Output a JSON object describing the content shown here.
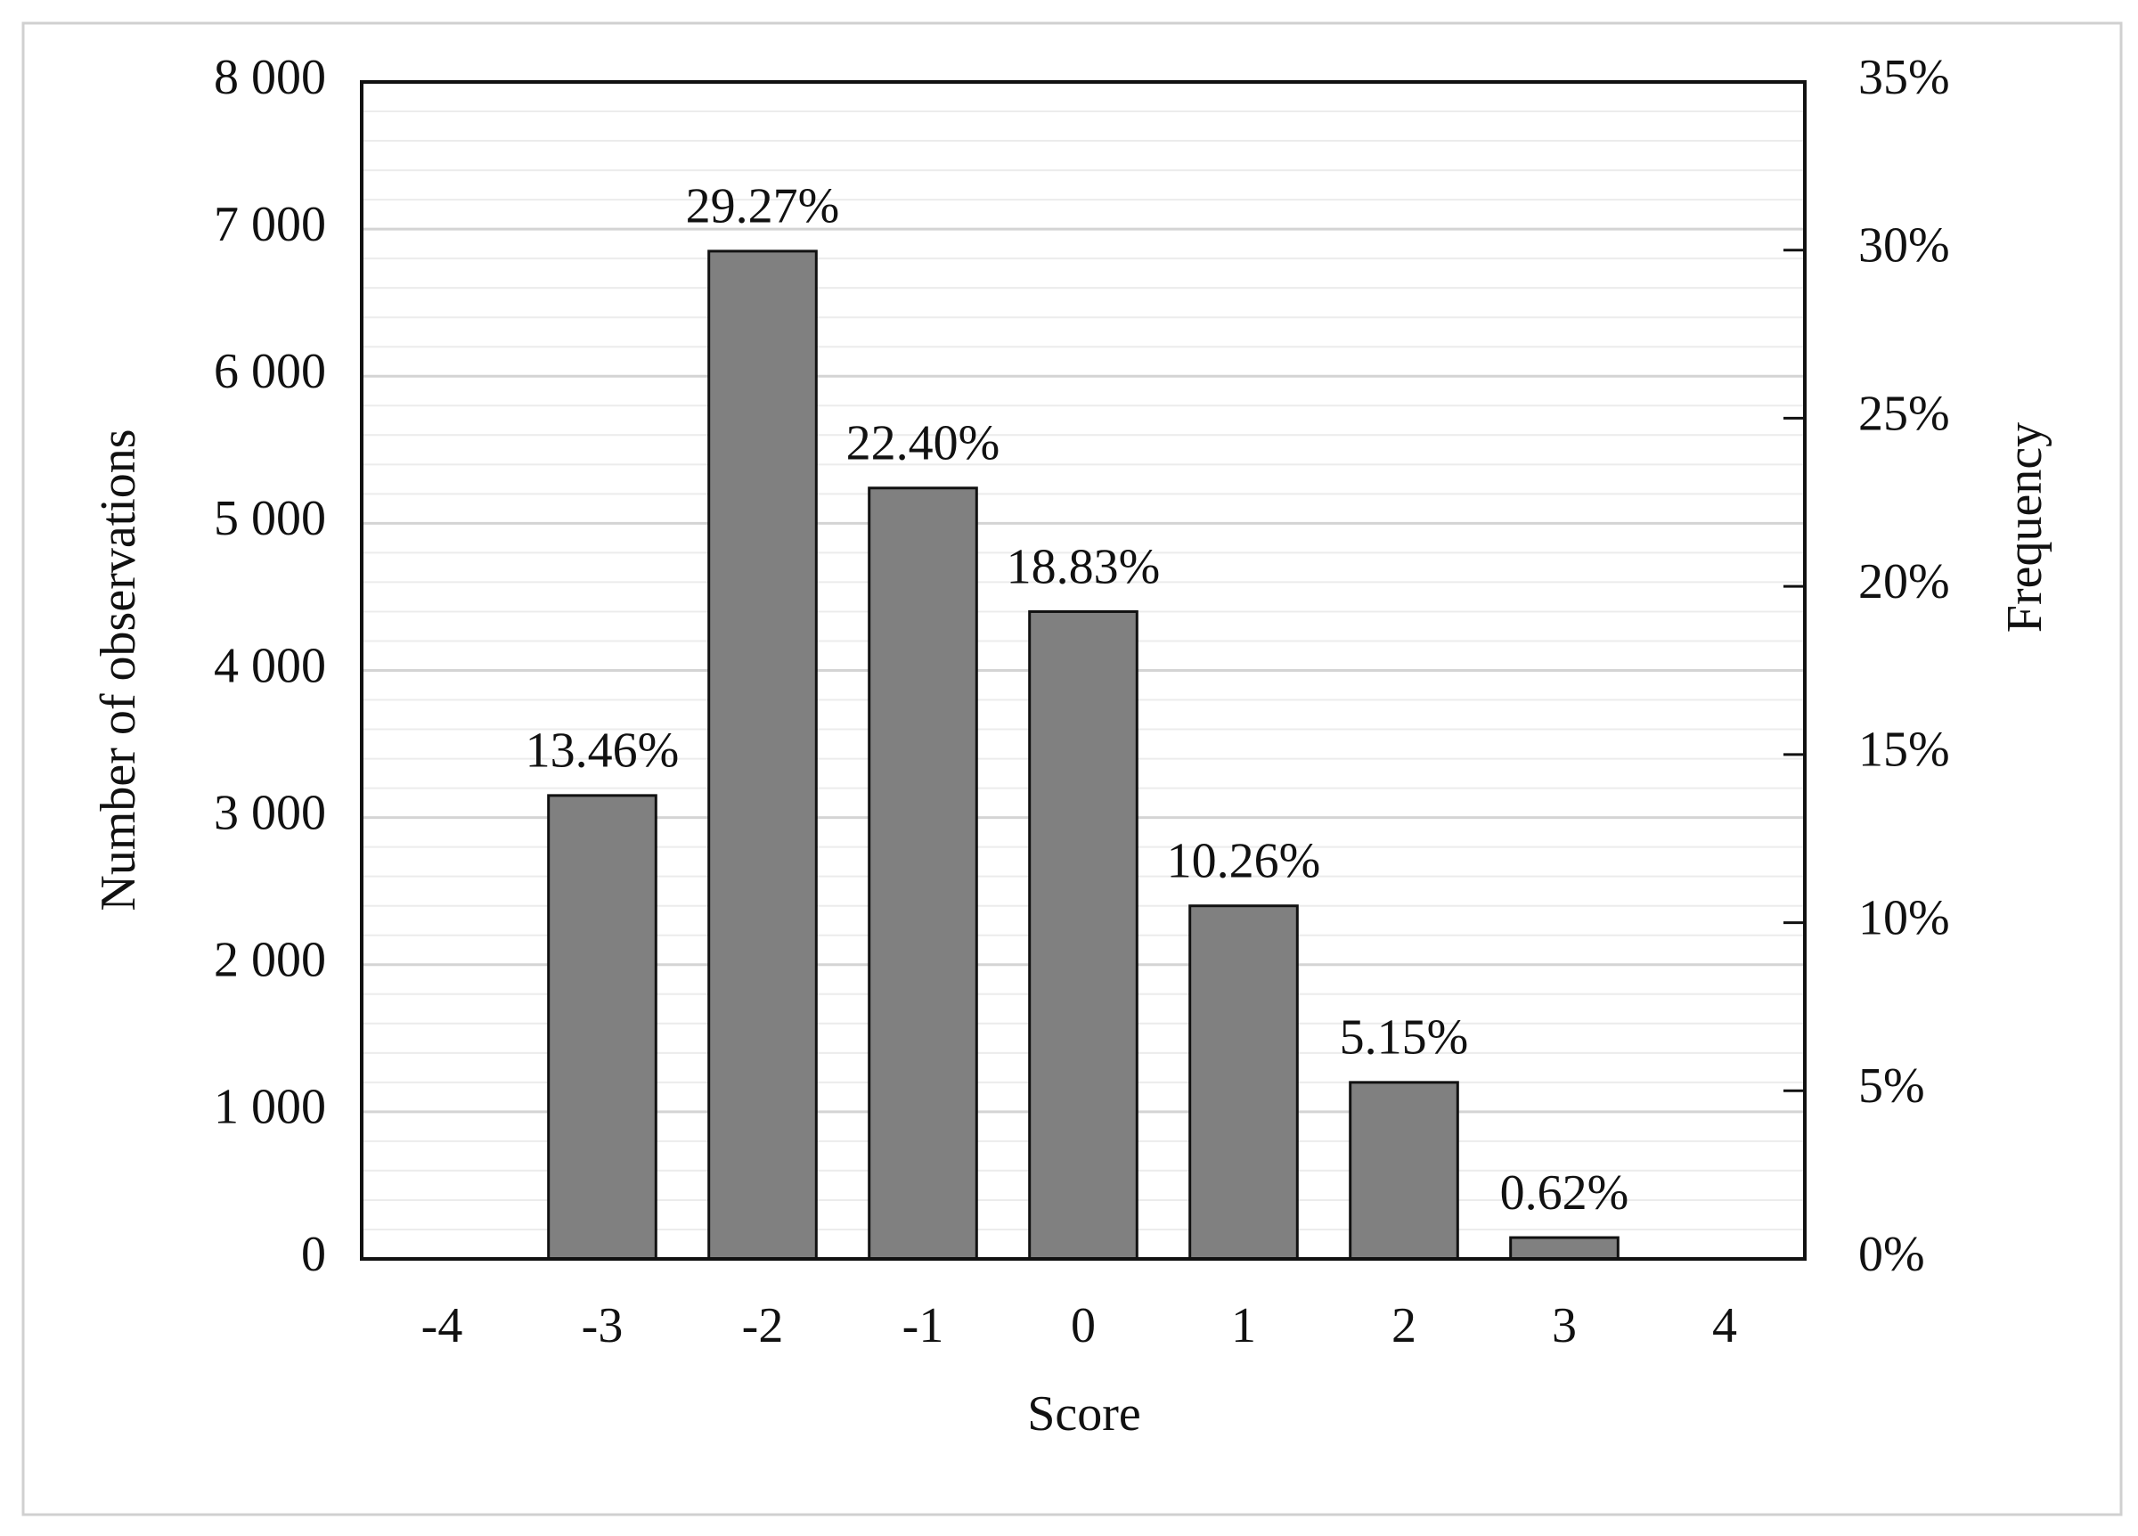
{
  "chart_data": {
    "type": "bar",
    "categories": [
      "-4",
      "-3",
      "-2",
      "-1",
      "0",
      "1",
      "2",
      "3",
      "4"
    ],
    "series": [
      {
        "name": "Number of observations",
        "color": "#808080",
        "values": [
          null,
          3150,
          6850,
          5240,
          4400,
          2400,
          1200,
          145,
          null
        ]
      },
      {
        "name": "Frequency",
        "axis": "y2",
        "values": [
          null,
          13.46,
          29.27,
          22.4,
          18.83,
          10.26,
          5.15,
          0.62,
          null
        ],
        "value_labels": [
          null,
          "13.46%",
          "29.27%",
          "22.40%",
          "18.83%",
          "10.26%",
          "5.15%",
          "0.62%",
          null
        ]
      }
    ],
    "xlabel": "Score",
    "ylabel": "Number of observations",
    "y2label": "Frequency",
    "ylim": [
      0,
      8000
    ],
    "yticks": [
      {
        "value": 0,
        "label": "0"
      },
      {
        "value": 1000,
        "label": "1 000"
      },
      {
        "value": 2000,
        "label": "2 000"
      },
      {
        "value": 3000,
        "label": "3 000"
      },
      {
        "value": 4000,
        "label": "4 000"
      },
      {
        "value": 5000,
        "label": "5 000"
      },
      {
        "value": 6000,
        "label": "6 000"
      },
      {
        "value": 7000,
        "label": "7 000"
      },
      {
        "value": 8000,
        "label": "8 000"
      }
    ],
    "y2lim": [
      0,
      35
    ],
    "y2ticks": [
      {
        "value": 0,
        "label": "0%"
      },
      {
        "value": 5,
        "label": "5%"
      },
      {
        "value": 10,
        "label": "10%"
      },
      {
        "value": 15,
        "label": "15%"
      },
      {
        "value": 20,
        "label": "20%"
      },
      {
        "value": 25,
        "label": "25%"
      },
      {
        "value": 30,
        "label": "30%"
      },
      {
        "value": 35,
        "label": "35%"
      }
    ],
    "grid": true,
    "minor_grid": true
  }
}
